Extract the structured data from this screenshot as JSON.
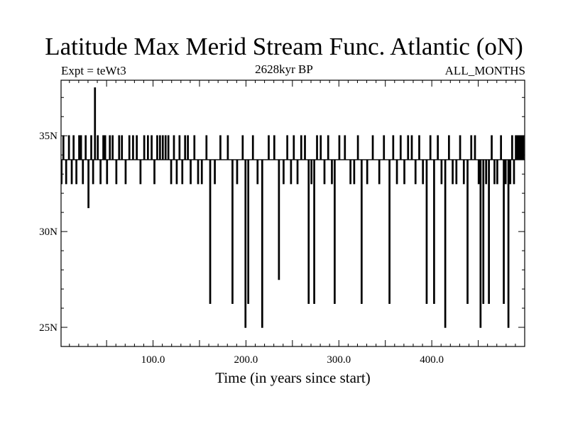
{
  "chart_data": {
    "type": "line",
    "title": "Latitude Max Merid Stream Func. Atlantic (oN)",
    "subtitle_left": "Expt = teWt3",
    "subtitle_center": "2628kyr BP",
    "subtitle_right": "ALL_MONTHS",
    "xlabel": "Time (in years since start)",
    "ylabel": "",
    "xlim": [
      1,
      500
    ],
    "ylim": [
      24,
      37.9
    ],
    "x_ticks": [
      100,
      200,
      300,
      400
    ],
    "x_tick_labels": [
      "100.0",
      "200.0",
      "300.0",
      "400.0"
    ],
    "y_ticks": [
      25,
      30,
      35
    ],
    "y_tick_labels": [
      "25N",
      "30N",
      "35N"
    ],
    "baseline": 33.75,
    "series": [
      {
        "name": "Latitude max",
        "events": [
          [
            1,
            32.5
          ],
          [
            3,
            35.0
          ],
          [
            6,
            32.5
          ],
          [
            9,
            35.0
          ],
          [
            12,
            32.5
          ],
          [
            14,
            35.0
          ],
          [
            17,
            32.5
          ],
          [
            20,
            35.0
          ],
          [
            22,
            35.0
          ],
          [
            24,
            32.5
          ],
          [
            27,
            35.0
          ],
          [
            30,
            31.25
          ],
          [
            33,
            35.0
          ],
          [
            35,
            32.5
          ],
          [
            37,
            37.5
          ],
          [
            40,
            35.0
          ],
          [
            43,
            32.5
          ],
          [
            46,
            35.0
          ],
          [
            48,
            35.0
          ],
          [
            50,
            32.5
          ],
          [
            53,
            35.0
          ],
          [
            56,
            35.0
          ],
          [
            60,
            32.5
          ],
          [
            63,
            35.0
          ],
          [
            66,
            35.0
          ],
          [
            70,
            32.5
          ],
          [
            74,
            35.0
          ],
          [
            78,
            35.0
          ],
          [
            82,
            35.0
          ],
          [
            86,
            32.5
          ],
          [
            90,
            35.0
          ],
          [
            94,
            35.0
          ],
          [
            98,
            35.0
          ],
          [
            101,
            32.5
          ],
          [
            104,
            35.0
          ],
          [
            107,
            35.0
          ],
          [
            110,
            35.0
          ],
          [
            113,
            35.0
          ],
          [
            116,
            35.0
          ],
          [
            119,
            32.5
          ],
          [
            122,
            35.0
          ],
          [
            125,
            32.5
          ],
          [
            128,
            35.0
          ],
          [
            131,
            32.5
          ],
          [
            134,
            35.0
          ],
          [
            137,
            35.0
          ],
          [
            140,
            32.5
          ],
          [
            144,
            35.0
          ],
          [
            148,
            32.5
          ],
          [
            152,
            32.5
          ],
          [
            157,
            35.0
          ],
          [
            161,
            26.25
          ],
          [
            166,
            32.5
          ],
          [
            172,
            35.0
          ],
          [
            180,
            35.0
          ],
          [
            185,
            26.25
          ],
          [
            190,
            32.5
          ],
          [
            196,
            35.0
          ],
          [
            199,
            25.0
          ],
          [
            202,
            26.25
          ],
          [
            207,
            35.0
          ],
          [
            212,
            32.5
          ],
          [
            217,
            25.0
          ],
          [
            224,
            35.0
          ],
          [
            230,
            35.0
          ],
          [
            235,
            27.5
          ],
          [
            240,
            32.5
          ],
          [
            244,
            35.0
          ],
          [
            248,
            32.5
          ],
          [
            251,
            35.0
          ],
          [
            255,
            32.5
          ],
          [
            259,
            35.0
          ],
          [
            263,
            35.0
          ],
          [
            267,
            26.25
          ],
          [
            270,
            32.5
          ],
          [
            273,
            26.25
          ],
          [
            276,
            35.0
          ],
          [
            280,
            35.0
          ],
          [
            284,
            32.5
          ],
          [
            288,
            35.0
          ],
          [
            292,
            32.5
          ],
          [
            295,
            26.25
          ],
          [
            300,
            35.0
          ],
          [
            306,
            35.0
          ],
          [
            312,
            32.5
          ],
          [
            316,
            32.5
          ],
          [
            320,
            35.0
          ],
          [
            324,
            26.25
          ],
          [
            330,
            32.5
          ],
          [
            336,
            35.0
          ],
          [
            343,
            32.5
          ],
          [
            348,
            35.0
          ],
          [
            354,
            26.25
          ],
          [
            358,
            35.0
          ],
          [
            362,
            32.5
          ],
          [
            366,
            35.0
          ],
          [
            370,
            32.5
          ],
          [
            374,
            35.0
          ],
          [
            378,
            35.0
          ],
          [
            382,
            32.5
          ],
          [
            386,
            35.0
          ],
          [
            390,
            32.5
          ],
          [
            394,
            26.25
          ],
          [
            398,
            35.0
          ],
          [
            402,
            26.25
          ],
          [
            406,
            35.0
          ],
          [
            410,
            32.5
          ],
          [
            414,
            25.0
          ],
          [
            418,
            35.0
          ],
          [
            422,
            32.5
          ],
          [
            426,
            32.5
          ],
          [
            430,
            35.0
          ],
          [
            434,
            32.5
          ],
          [
            438,
            26.25
          ],
          [
            442,
            35.0
          ],
          [
            446,
            35.0
          ],
          [
            450,
            32.5
          ],
          [
            452,
            25.0
          ],
          [
            455,
            26.25
          ],
          [
            458,
            32.5
          ],
          [
            461,
            26.25
          ],
          [
            464,
            35.0
          ],
          [
            467,
            32.5
          ],
          [
            470,
            32.5
          ],
          [
            474,
            35.0
          ],
          [
            477,
            26.25
          ],
          [
            479,
            32.5
          ],
          [
            482,
            25.0
          ],
          [
            484,
            32.5
          ],
          [
            486,
            35.0
          ],
          [
            488,
            32.5
          ],
          [
            490,
            35.0
          ],
          [
            492,
            35.0
          ],
          [
            494,
            35.0
          ],
          [
            496,
            35.0
          ],
          [
            498,
            35.0
          ]
        ]
      }
    ]
  }
}
